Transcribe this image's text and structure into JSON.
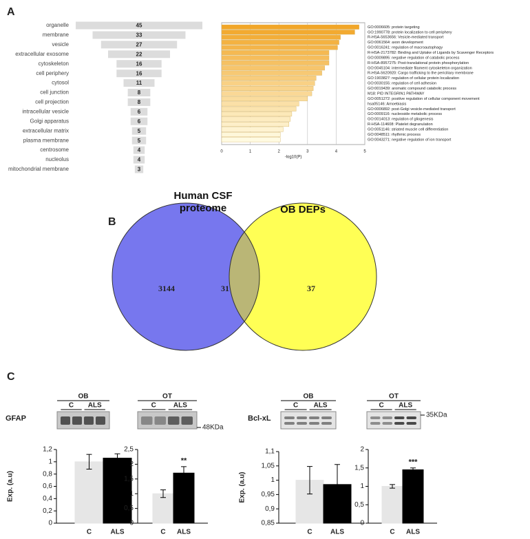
{
  "panels": [
    "A",
    "B",
    "C"
  ],
  "blots": [
    {
      "tissue": "OB",
      "lanes": [
        "C",
        "ALS"
      ],
      "protein": "GFAP"
    },
    {
      "tissue": "OT",
      "lanes": [
        "C",
        "ALS"
      ],
      "marker": "48KDa"
    },
    {
      "tissue": "OB",
      "lanes": [
        "C",
        "ALS"
      ],
      "protein": "Bcl-xL"
    },
    {
      "tissue": "OT",
      "lanes": [
        "C",
        "ALS"
      ],
      "marker": "35KDa"
    }
  ],
  "chart_data": [
    {
      "type": "bar",
      "orientation": "funnel",
      "color": "#dcdcdc",
      "categories": [
        "organelle",
        "membrane",
        "vesicle",
        "extracellular exosome",
        "cytoskeleton",
        "cell periphery",
        "cytosol",
        "cell junction",
        "cell projection",
        "intracellular vesicle",
        "Golgi apparatus",
        "extracellular matrix",
        "plasma membrane",
        "centrosome",
        "nucleolus",
        "mitochondrial membrane"
      ],
      "values": [
        45,
        33,
        27,
        22,
        16,
        16,
        11,
        8,
        8,
        6,
        6,
        5,
        5,
        4,
        4,
        3
      ]
    },
    {
      "type": "bar",
      "orientation": "horizontal",
      "x_label": "-log10(P)",
      "color_scale": [
        "#f2a628",
        "#fffbe2"
      ],
      "grid": true,
      "categories": [
        "GO:0006605: protein targeting",
        "GO:1990778: protein localization to cell periphery",
        "R-HSA-5653656: Vesicle-mediated transport",
        "GO:0061564: axon development",
        "GO:0016241: regulation of macroautophagy",
        "R-HSA-2173782: Binding and Uptake of Ligands by Scavenger Receptors",
        "GO:0009895: negative regulation of catabolic process",
        "R-HSA-8957275: Post-translational protein phosphorylation",
        "GO:0045104: intermediate filament cytoskeleton organization",
        "R-HSA-5620920: Cargo trafficking to the periciliary membrane",
        "GO:1903827: regulation of cellular protein localization",
        "GO:0030155: regulation of cell adhesion",
        "GO:0019439: aromatic compound catabolic process",
        "M18: PID INTEGRIN1 PATHWAY",
        "GO:0051272: positive regulation of cellular component movement",
        "hsa05146: Amoebiasis",
        "GO:0006892: post-Golgi vesicle-mediated transport",
        "GO:0009116: nucleoside metabolic process",
        "GO:0014013: regulation of gliogenesis",
        "R-HSA-114608: Platelet degranulation",
        "GO:0051146: striated muscle cell differentiation",
        "GO:0048511: rhythmic process",
        "GO:0043271: negative regulation of ion transport"
      ],
      "values": [
        4.8,
        4.65,
        4.15,
        4.1,
        4.05,
        3.75,
        3.75,
        3.75,
        3.6,
        3.5,
        3.3,
        3.25,
        3.2,
        3.15,
        3.0,
        2.7,
        2.6,
        2.45,
        2.4,
        2.35,
        2.15,
        2.05,
        2.05
      ],
      "xlim": [
        0,
        5
      ],
      "xticks": [
        0,
        1,
        2,
        3,
        4,
        5
      ]
    },
    {
      "type": "venn",
      "series": [
        {
          "name": "Human CSF proteome",
          "color": "#7777ee"
        },
        {
          "name": "OB DEPs",
          "color": "#ffff55"
        }
      ],
      "overlap_color": "#bab676",
      "values": [
        3144,
        31,
        37
      ]
    },
    {
      "type": "errorbar",
      "y_label": "Exp. (a.u)",
      "categories": [
        "C",
        "ALS"
      ],
      "colors": [
        "#e6e6e6",
        "#000000"
      ],
      "values": [
        1,
        1.06
      ],
      "errors": [
        0.12,
        0.07
      ],
      "ylim": [
        0,
        1.2
      ],
      "yticks": [
        0,
        {
          "value": 0.2,
          "label": "0,2"
        },
        {
          "value": 0.4,
          "label": "0,4"
        },
        {
          "value": 0.6,
          "label": "0,6"
        },
        {
          "value": 0.8,
          "label": "0,8"
        },
        1,
        {
          "value": 1.2,
          "label": "1,2"
        }
      ]
    },
    {
      "type": "errorbar",
      "categories": [
        "C",
        "ALS"
      ],
      "colors": [
        "#e6e6e6",
        "#000000"
      ],
      "values": [
        1,
        1.7
      ],
      "errors": [
        0.13,
        0.22
      ],
      "annotation": "**",
      "ylim": [
        0,
        2.5
      ],
      "yticks": [
        0,
        {
          "value": 0.5,
          "label": "0,5"
        },
        1,
        {
          "value": 1.5,
          "label": "1,5"
        },
        2,
        {
          "value": 2.5,
          "label": "2,5"
        }
      ]
    },
    {
      "type": "errorbar",
      "y_label": "Exp. (a.u)",
      "categories": [
        "C",
        "ALS"
      ],
      "colors": [
        "#e6e6e6",
        "#000000"
      ],
      "values": [
        1,
        0.985
      ],
      "errors": [
        0.048,
        0.07
      ],
      "ylim": [
        0.85,
        1.1
      ],
      "yticks": [
        {
          "value": 0.85,
          "label": "0,85"
        },
        {
          "value": 0.9,
          "label": "0,9"
        },
        {
          "value": 0.95,
          "label": "0,95"
        },
        1,
        {
          "value": 1.05,
          "label": "1,05"
        },
        {
          "value": 1.1,
          "label": "1,1"
        }
      ]
    },
    {
      "type": "errorbar",
      "categories": [
        "C",
        "ALS"
      ],
      "colors": [
        "#e6e6e6",
        "#000000"
      ],
      "values": [
        1,
        1.45
      ],
      "errors": [
        0.05,
        0.05
      ],
      "annotation": "***",
      "ylim": [
        0,
        2
      ],
      "yticks": [
        0,
        {
          "value": 0.5,
          "label": "0,5"
        },
        1,
        {
          "value": 1.5,
          "label": "1,5"
        },
        2
      ]
    }
  ]
}
